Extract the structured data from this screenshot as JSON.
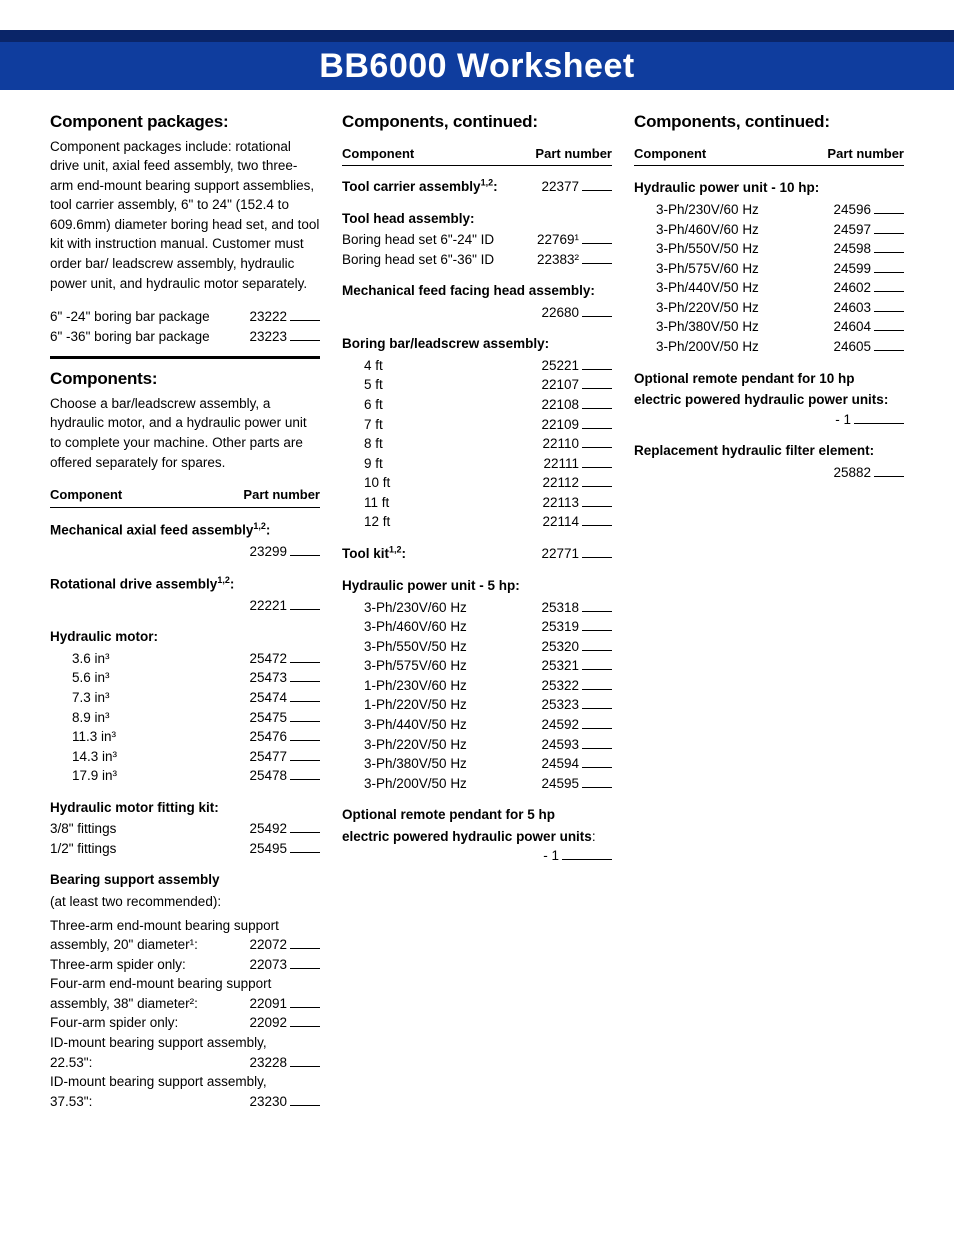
{
  "title": "BB6000 Worksheet",
  "col1": {
    "packages_heading": "Component packages:",
    "packages_intro": "Component packages include: rotational drive unit, axial feed assembly, two three-arm end-mount bearing support assemblies, tool carrier assembly, 6\" to 24\" (152.4 to 609.6mm) diameter boring head set, and tool kit with instruction manual. Customer must order bar/ leadscrew assembly, hydraulic power unit, and hydraulic motor separately.",
    "pkg_rows": [
      {
        "label": "6\" -24\" boring bar package",
        "pn": "23222"
      },
      {
        "label": "6\" -36\" boring bar package",
        "pn": "23223"
      }
    ],
    "components_heading": "Components:",
    "components_intro": "Choose a bar/leadscrew assembly, a hydraulic motor, and a hydraulic power unit to complete your machine. Other parts are offered separately for spares.",
    "th_component": "Component",
    "th_partnum": "Part number",
    "mech_axial_title": "Mechanical axial feed assembly",
    "mech_axial_pn": "23299",
    "rot_drive_title": "Rotational drive assembly",
    "rot_drive_pn": "22221",
    "hyd_motor_title": "Hydraulic motor:",
    "hyd_motor_rows": [
      {
        "label": "3.6 in³",
        "pn": "25472"
      },
      {
        "label": "5.6 in³",
        "pn": "25473"
      },
      {
        "label": "7.3 in³",
        "pn": "25474"
      },
      {
        "label": "8.9 in³",
        "pn": "25475"
      },
      {
        "label": "11.3 in³",
        "pn": "25476"
      },
      {
        "label": "14.3 in³",
        "pn": "25477"
      },
      {
        "label": "17.9 in³",
        "pn": "25478"
      }
    ],
    "fitting_kit_title": "Hydraulic motor fitting kit:",
    "fitting_rows": [
      {
        "label": "3/8\" fittings",
        "pn": "25492"
      },
      {
        "label": "1/2\" fittings",
        "pn": "25495"
      }
    ],
    "bearing_title": "Bearing support assembly",
    "bearing_note": "(at least two recommended):",
    "bearing_r1a": "Three-arm end-mount bearing support",
    "bearing_r1b": "assembly, 20\" diameter¹:",
    "bearing_r1pn": "22072",
    "bearing_r2": "Three-arm spider only:",
    "bearing_r2pn": "22073",
    "bearing_r3a": "Four-arm end-mount bearing support",
    "bearing_r3b": "assembly, 38\" diameter²:",
    "bearing_r3pn": "22091",
    "bearing_r4": "Four-arm spider only:",
    "bearing_r4pn": "22092",
    "bearing_r5a": "ID-mount bearing support assembly,",
    "bearing_r5b": "22.53\":",
    "bearing_r5pn": "23228",
    "bearing_r6a": "ID-mount bearing support assembly,",
    "bearing_r6b": "37.53\":",
    "bearing_r6pn": "23230"
  },
  "col2": {
    "heading": "Components, continued:",
    "th_component": "Component",
    "th_partnum": "Part number",
    "tool_carrier_label": "Tool carrier assembly",
    "tool_carrier_pn": "22377",
    "tool_head_title": "Tool head assembly:",
    "tool_head_rows": [
      {
        "label": "Boring head set 6\"-24\" ID",
        "pn": "22769¹"
      },
      {
        "label": "Boring head set 6\"-36\" ID",
        "pn": "22383²"
      }
    ],
    "mech_feed_title": "Mechanical feed facing head assembly:",
    "mech_feed_pn": "22680",
    "boring_bar_title": "Boring bar/leadscrew assembly:",
    "boring_bar_rows": [
      {
        "label": "4 ft",
        "pn": "25221"
      },
      {
        "label": "5 ft",
        "pn": "22107"
      },
      {
        "label": "6 ft",
        "pn": "22108"
      },
      {
        "label": "7 ft",
        "pn": "22109"
      },
      {
        "label": "8 ft",
        "pn": "22110"
      },
      {
        "label": "9 ft",
        "pn": "22111"
      },
      {
        "label": "10 ft",
        "pn": "22112"
      },
      {
        "label": "11 ft",
        "pn": "22113"
      },
      {
        "label": "12 ft",
        "pn": "22114"
      }
    ],
    "tool_kit_label": "Tool kit",
    "tool_kit_pn": "22771",
    "hpu5_title": "Hydraulic power unit - 5 hp:",
    "hpu5_rows": [
      {
        "label": "3-Ph/230V/60 Hz",
        "pn": "25318"
      },
      {
        "label": "3-Ph/460V/60 Hz",
        "pn": "25319"
      },
      {
        "label": "3-Ph/550V/50 Hz",
        "pn": "25320"
      },
      {
        "label": "3-Ph/575V/60 Hz",
        "pn": "25321"
      },
      {
        "label": "1-Ph/230V/60 Hz",
        "pn": "25322"
      },
      {
        "label": "1-Ph/220V/50 Hz",
        "pn": "25323"
      },
      {
        "label": "3-Ph/440V/50 Hz",
        "pn": "24592"
      },
      {
        "label": "3-Ph/220V/50 Hz",
        "pn": "24593"
      },
      {
        "label": "3-Ph/380V/50 Hz",
        "pn": "24594"
      },
      {
        "label": "3-Ph/200V/50 Hz",
        "pn": "24595"
      }
    ],
    "pendant5_l1": "Optional remote pendant for 5 hp",
    "pendant5_l2": "electric powered hydraulic power units",
    "pendant5_val": "- 1"
  },
  "col3": {
    "heading": "Components, continued:",
    "th_component": "Component",
    "th_partnum": "Part number",
    "hpu10_title": "Hydraulic power unit - 10 hp:",
    "hpu10_rows": [
      {
        "label": "3-Ph/230V/60 Hz",
        "pn": "24596"
      },
      {
        "label": "3-Ph/460V/60 Hz",
        "pn": "24597"
      },
      {
        "label": "3-Ph/550V/50 Hz",
        "pn": "24598"
      },
      {
        "label": "3-Ph/575V/60 Hz",
        "pn": "24599"
      },
      {
        "label": "3-Ph/440V/50 Hz",
        "pn": "24602"
      },
      {
        "label": "3-Ph/220V/50 Hz",
        "pn": "24603"
      },
      {
        "label": "3-Ph/380V/50 Hz",
        "pn": "24604"
      },
      {
        "label": "3-Ph/200V/50 Hz",
        "pn": "24605"
      }
    ],
    "pendant10_l1": "Optional remote pendant for 10 hp",
    "pendant10_l2": "electric powered hydraulic power units:",
    "pendant10_val": "- 1",
    "filter_title": "Replacement hydraulic filter element:",
    "filter_pn": "25882"
  }
}
